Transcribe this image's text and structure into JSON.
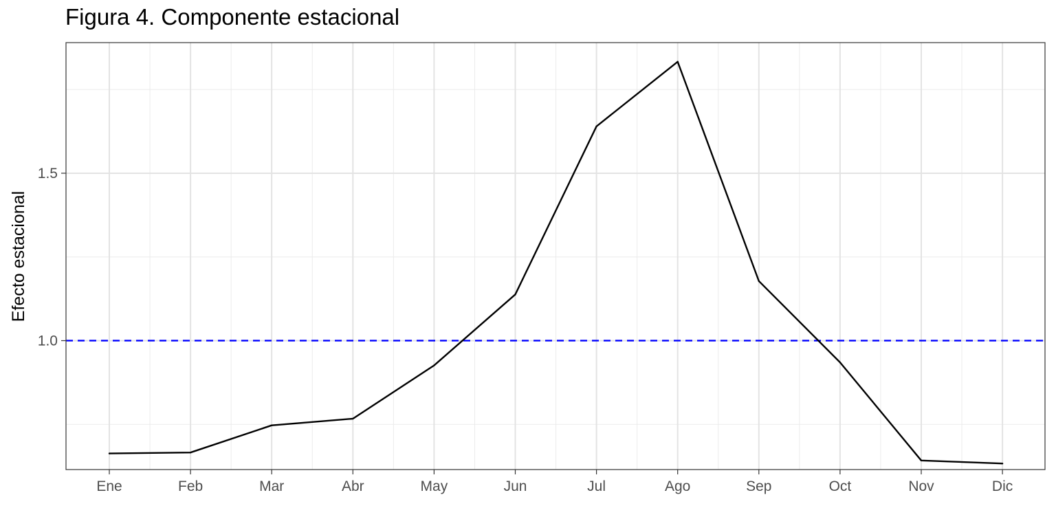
{
  "chart_data": {
    "type": "line",
    "title": "Figura 4. Componente estacional",
    "xlabel": "",
    "ylabel": "Efecto estacional",
    "categories": [
      "Ene",
      "Feb",
      "Mar",
      "Abr",
      "May",
      "Jun",
      "Jul",
      "Ago",
      "Sep",
      "Oct",
      "Nov",
      "Dic"
    ],
    "series": [
      {
        "values": [
          0.663,
          0.666,
          0.747,
          0.767,
          0.926,
          1.138,
          1.64,
          1.833,
          1.178,
          0.935,
          0.642,
          0.633
        ],
        "color": "#000000"
      }
    ],
    "reference_line": {
      "y": 1.0,
      "style": "dashed",
      "color": "#0000ff"
    },
    "ylim": [
      0.615,
      1.89
    ],
    "y_ticks": [
      1.0,
      1.5
    ],
    "y_tick_labels": [
      "1.0",
      "1.5"
    ],
    "y_minor_ticks": [
      0.75,
      1.25,
      1.75
    ],
    "grid": true,
    "legend": "none"
  }
}
